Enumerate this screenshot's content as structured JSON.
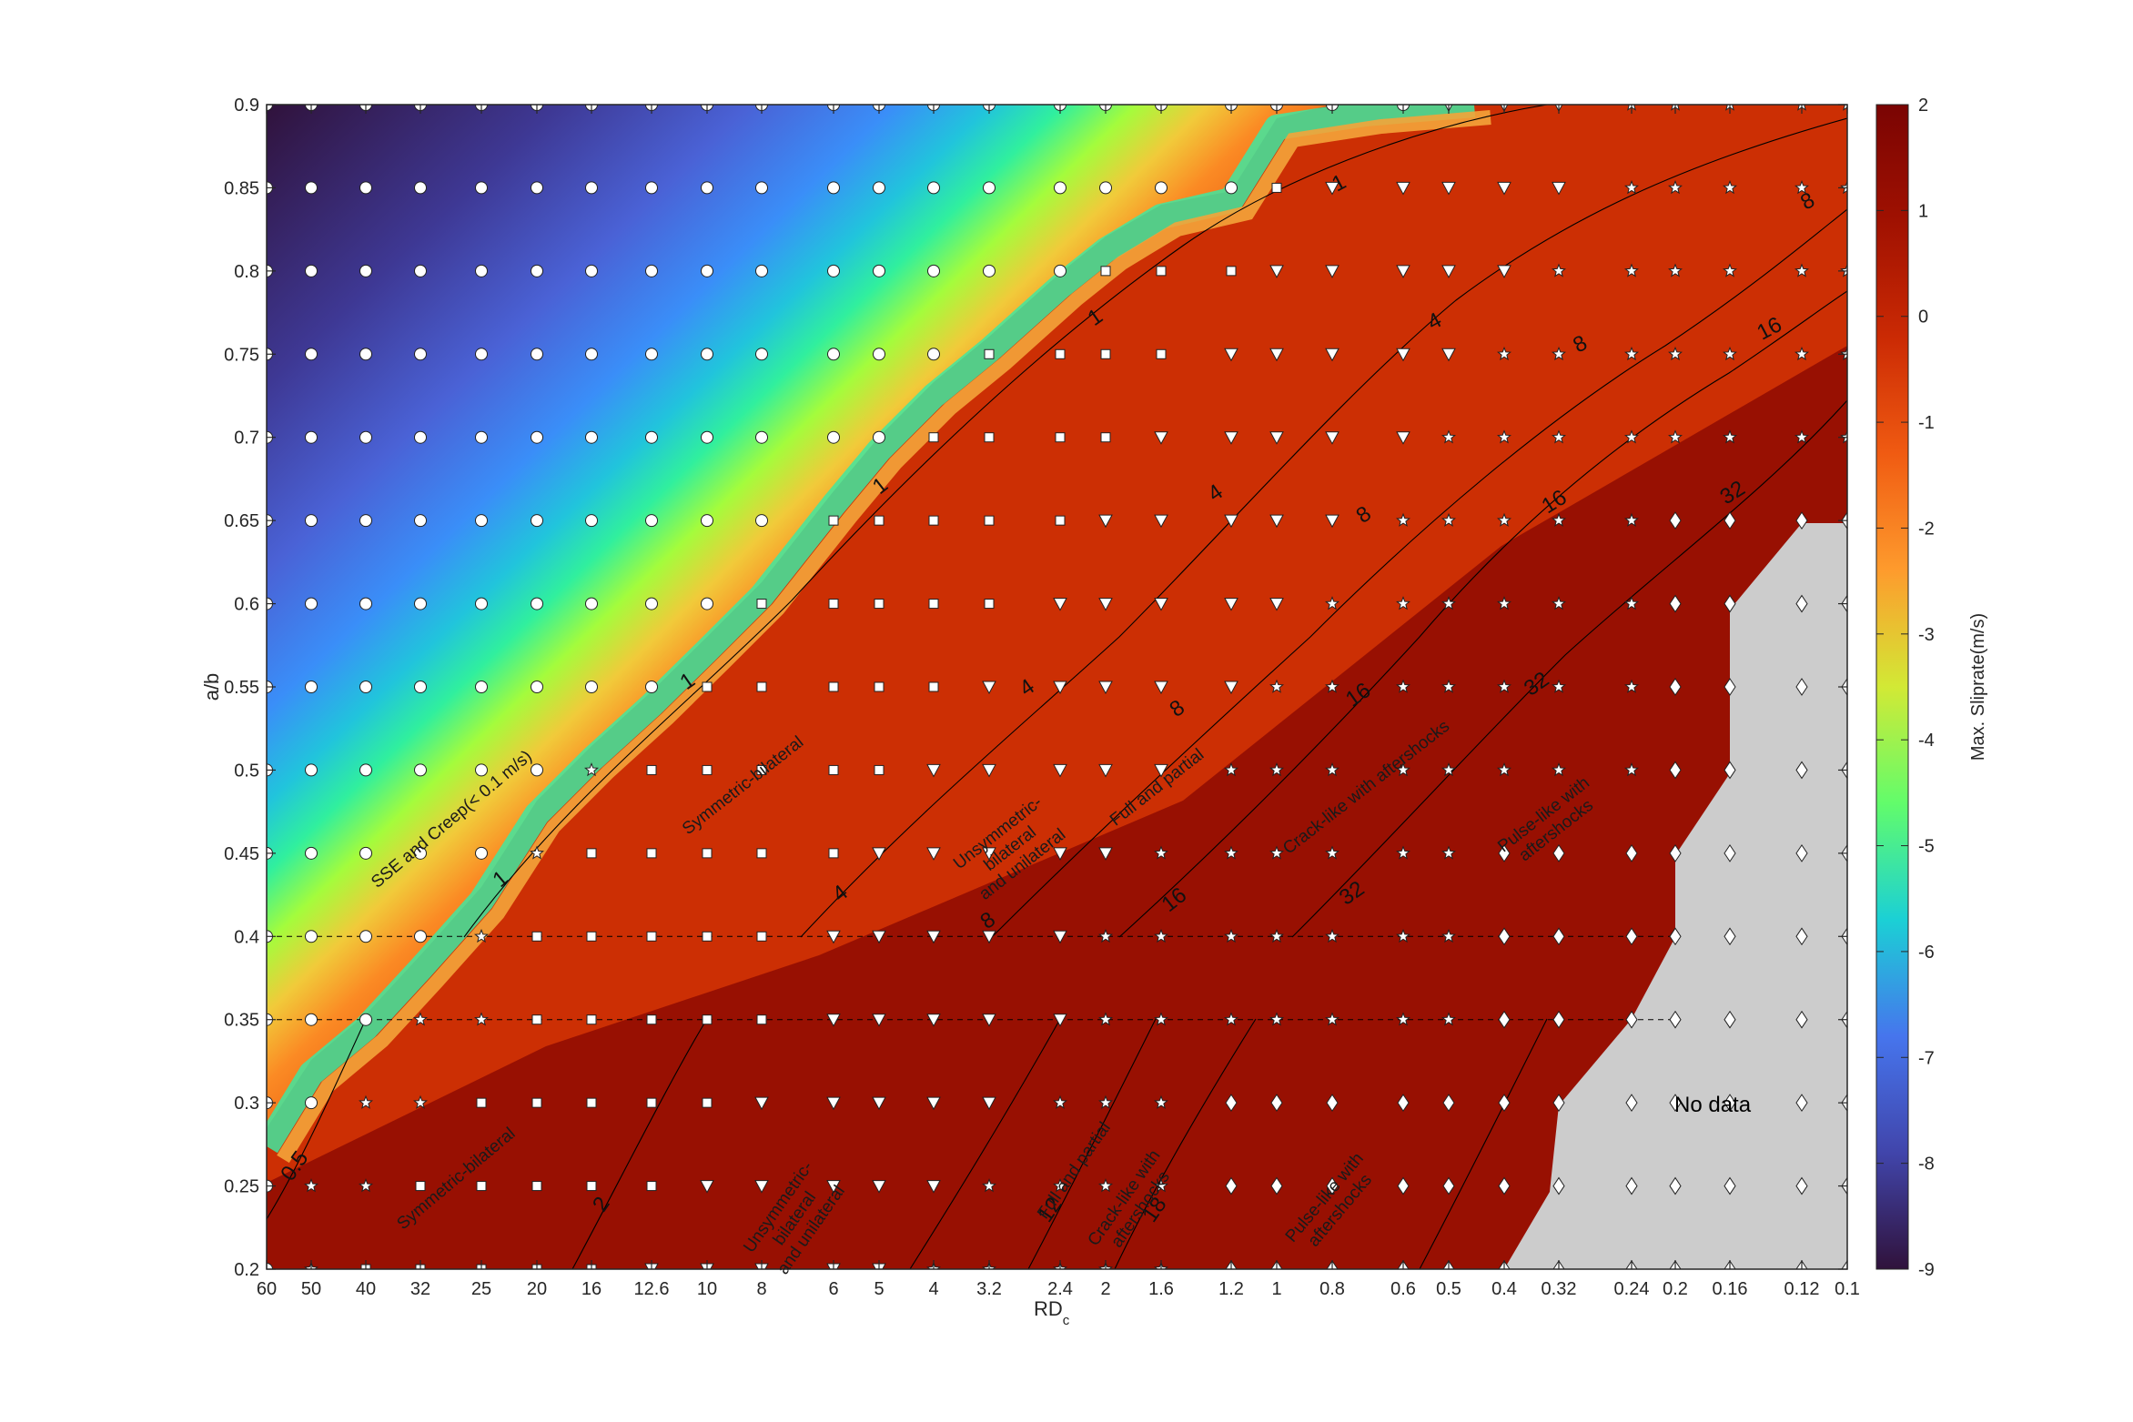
{
  "chart_data": {
    "type": "heatmap",
    "xlabel": "RD",
    "xlabel_sub": "c",
    "ylabel": "a/b",
    "x_ticks": [
      "60",
      "50",
      "40",
      "32",
      "25",
      "20",
      "16",
      "12.6",
      "10",
      "8",
      "6",
      "5",
      "4",
      "3.2",
      "2.4",
      "2",
      "1.6",
      "1.2",
      "1",
      "0.8",
      "0.6",
      "0.5",
      "0.4",
      "0.32",
      "0.24",
      "0.2",
      "0.16",
      "0.12",
      "0.1"
    ],
    "y_ticks": [
      "0.9",
      "0.85",
      "0.8",
      "0.75",
      "0.7",
      "0.65",
      "0.6",
      "0.55",
      "0.5",
      "0.45",
      "0.4",
      "0.35",
      "0.3",
      "0.25",
      "0.2"
    ],
    "colorbar": {
      "label": "Max. Sliprate(m/s)",
      "range": [
        -9,
        2
      ],
      "ticks": [
        "2",
        "1",
        "0",
        "-1",
        "-2",
        "-3",
        "-4",
        "-5",
        "-6",
        "-7",
        "-8",
        "-9"
      ]
    },
    "contour_labels": [
      {
        "text": "0.5"
      },
      {
        "text": "1"
      },
      {
        "text": "1"
      },
      {
        "text": "1"
      },
      {
        "text": "1"
      },
      {
        "text": "1"
      },
      {
        "text": "2"
      },
      {
        "text": "4"
      },
      {
        "text": "4"
      },
      {
        "text": "4"
      },
      {
        "text": "4"
      },
      {
        "text": "8"
      },
      {
        "text": "8"
      },
      {
        "text": "8"
      },
      {
        "text": "8"
      },
      {
        "text": "8"
      },
      {
        "text": "12"
      },
      {
        "text": "16"
      },
      {
        "text": "16"
      },
      {
        "text": "16"
      },
      {
        "text": "16"
      },
      {
        "text": "18"
      },
      {
        "text": "32"
      },
      {
        "text": "32"
      },
      {
        "text": "32"
      }
    ],
    "region_labels": [
      {
        "lines": [
          "SSE and Creep(< 0.1 m/s)"
        ]
      },
      {
        "lines": [
          "Symmetric-bilateral"
        ]
      },
      {
        "lines": [
          "Unsymmetric-",
          "bilateral",
          "and unilateral"
        ]
      },
      {
        "lines": [
          "Full and partial"
        ]
      },
      {
        "lines": [
          "Crack-like with aftershocks"
        ]
      },
      {
        "lines": [
          "Pulse-like with",
          "aftershocks"
        ]
      },
      {
        "lines": [
          "Symmetric-bilateral"
        ]
      },
      {
        "lines": [
          "Unsymmetric-",
          "bilateral",
          "and unilateral"
        ]
      },
      {
        "lines": [
          "Full and partial"
        ]
      },
      {
        "lines": [
          "Crack-like with",
          "aftershocks"
        ]
      },
      {
        "lines": [
          "Pulse-like with",
          "aftershocks"
        ]
      }
    ],
    "nodata_label": "No data",
    "marker_legend": {
      "circle": "SSE and Creep",
      "star": "Symmetric-bilateral",
      "square": "Unsymmetric-bilateral and unilateral",
      "triangle-down": "Full and partial",
      "diamond": "Pulse-like with aftershocks"
    }
  },
  "colors": {
    "turbo_low": "#30123b",
    "turbo_high": "#7a0403",
    "nodata": "#cccccc"
  }
}
